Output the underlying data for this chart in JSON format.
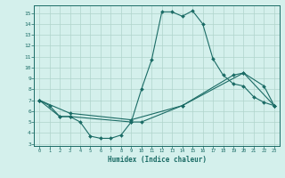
{
  "xlabel": "Humidex (Indice chaleur)",
  "xlim": [
    -0.5,
    23.5
  ],
  "ylim": [
    2.8,
    15.7
  ],
  "xtick_vals": [
    0,
    1,
    2,
    3,
    4,
    5,
    6,
    7,
    8,
    9,
    10,
    11,
    12,
    13,
    14,
    15,
    16,
    17,
    18,
    19,
    20,
    21,
    22,
    23
  ],
  "ytick_vals": [
    3,
    4,
    5,
    6,
    7,
    8,
    9,
    10,
    11,
    12,
    13,
    14,
    15
  ],
  "bg_color": "#d4f0ec",
  "line_color": "#1a6b65",
  "grid_color": "#b0d4cc",
  "line1_x": [
    0,
    1,
    2,
    3,
    4,
    5,
    6,
    7,
    8,
    9,
    10,
    11,
    12,
    13,
    14,
    15,
    16,
    17,
    18,
    19,
    20,
    21,
    22,
    23
  ],
  "line1_y": [
    7.0,
    6.5,
    5.5,
    5.5,
    5.0,
    3.7,
    3.5,
    3.5,
    3.8,
    5.0,
    8.0,
    10.7,
    15.1,
    15.1,
    14.7,
    15.2,
    14.0,
    10.8,
    9.3,
    8.5,
    8.3,
    7.3,
    6.8,
    6.5
  ],
  "line2_x": [
    0,
    2,
    3,
    9,
    10,
    14,
    19,
    20,
    22,
    23
  ],
  "line2_y": [
    7.0,
    5.5,
    5.5,
    5.0,
    5.0,
    6.5,
    9.3,
    9.5,
    8.3,
    6.5
  ],
  "line3_x": [
    0,
    3,
    9,
    14,
    20,
    23
  ],
  "line3_y": [
    7.0,
    5.8,
    5.2,
    6.5,
    9.5,
    6.5
  ]
}
